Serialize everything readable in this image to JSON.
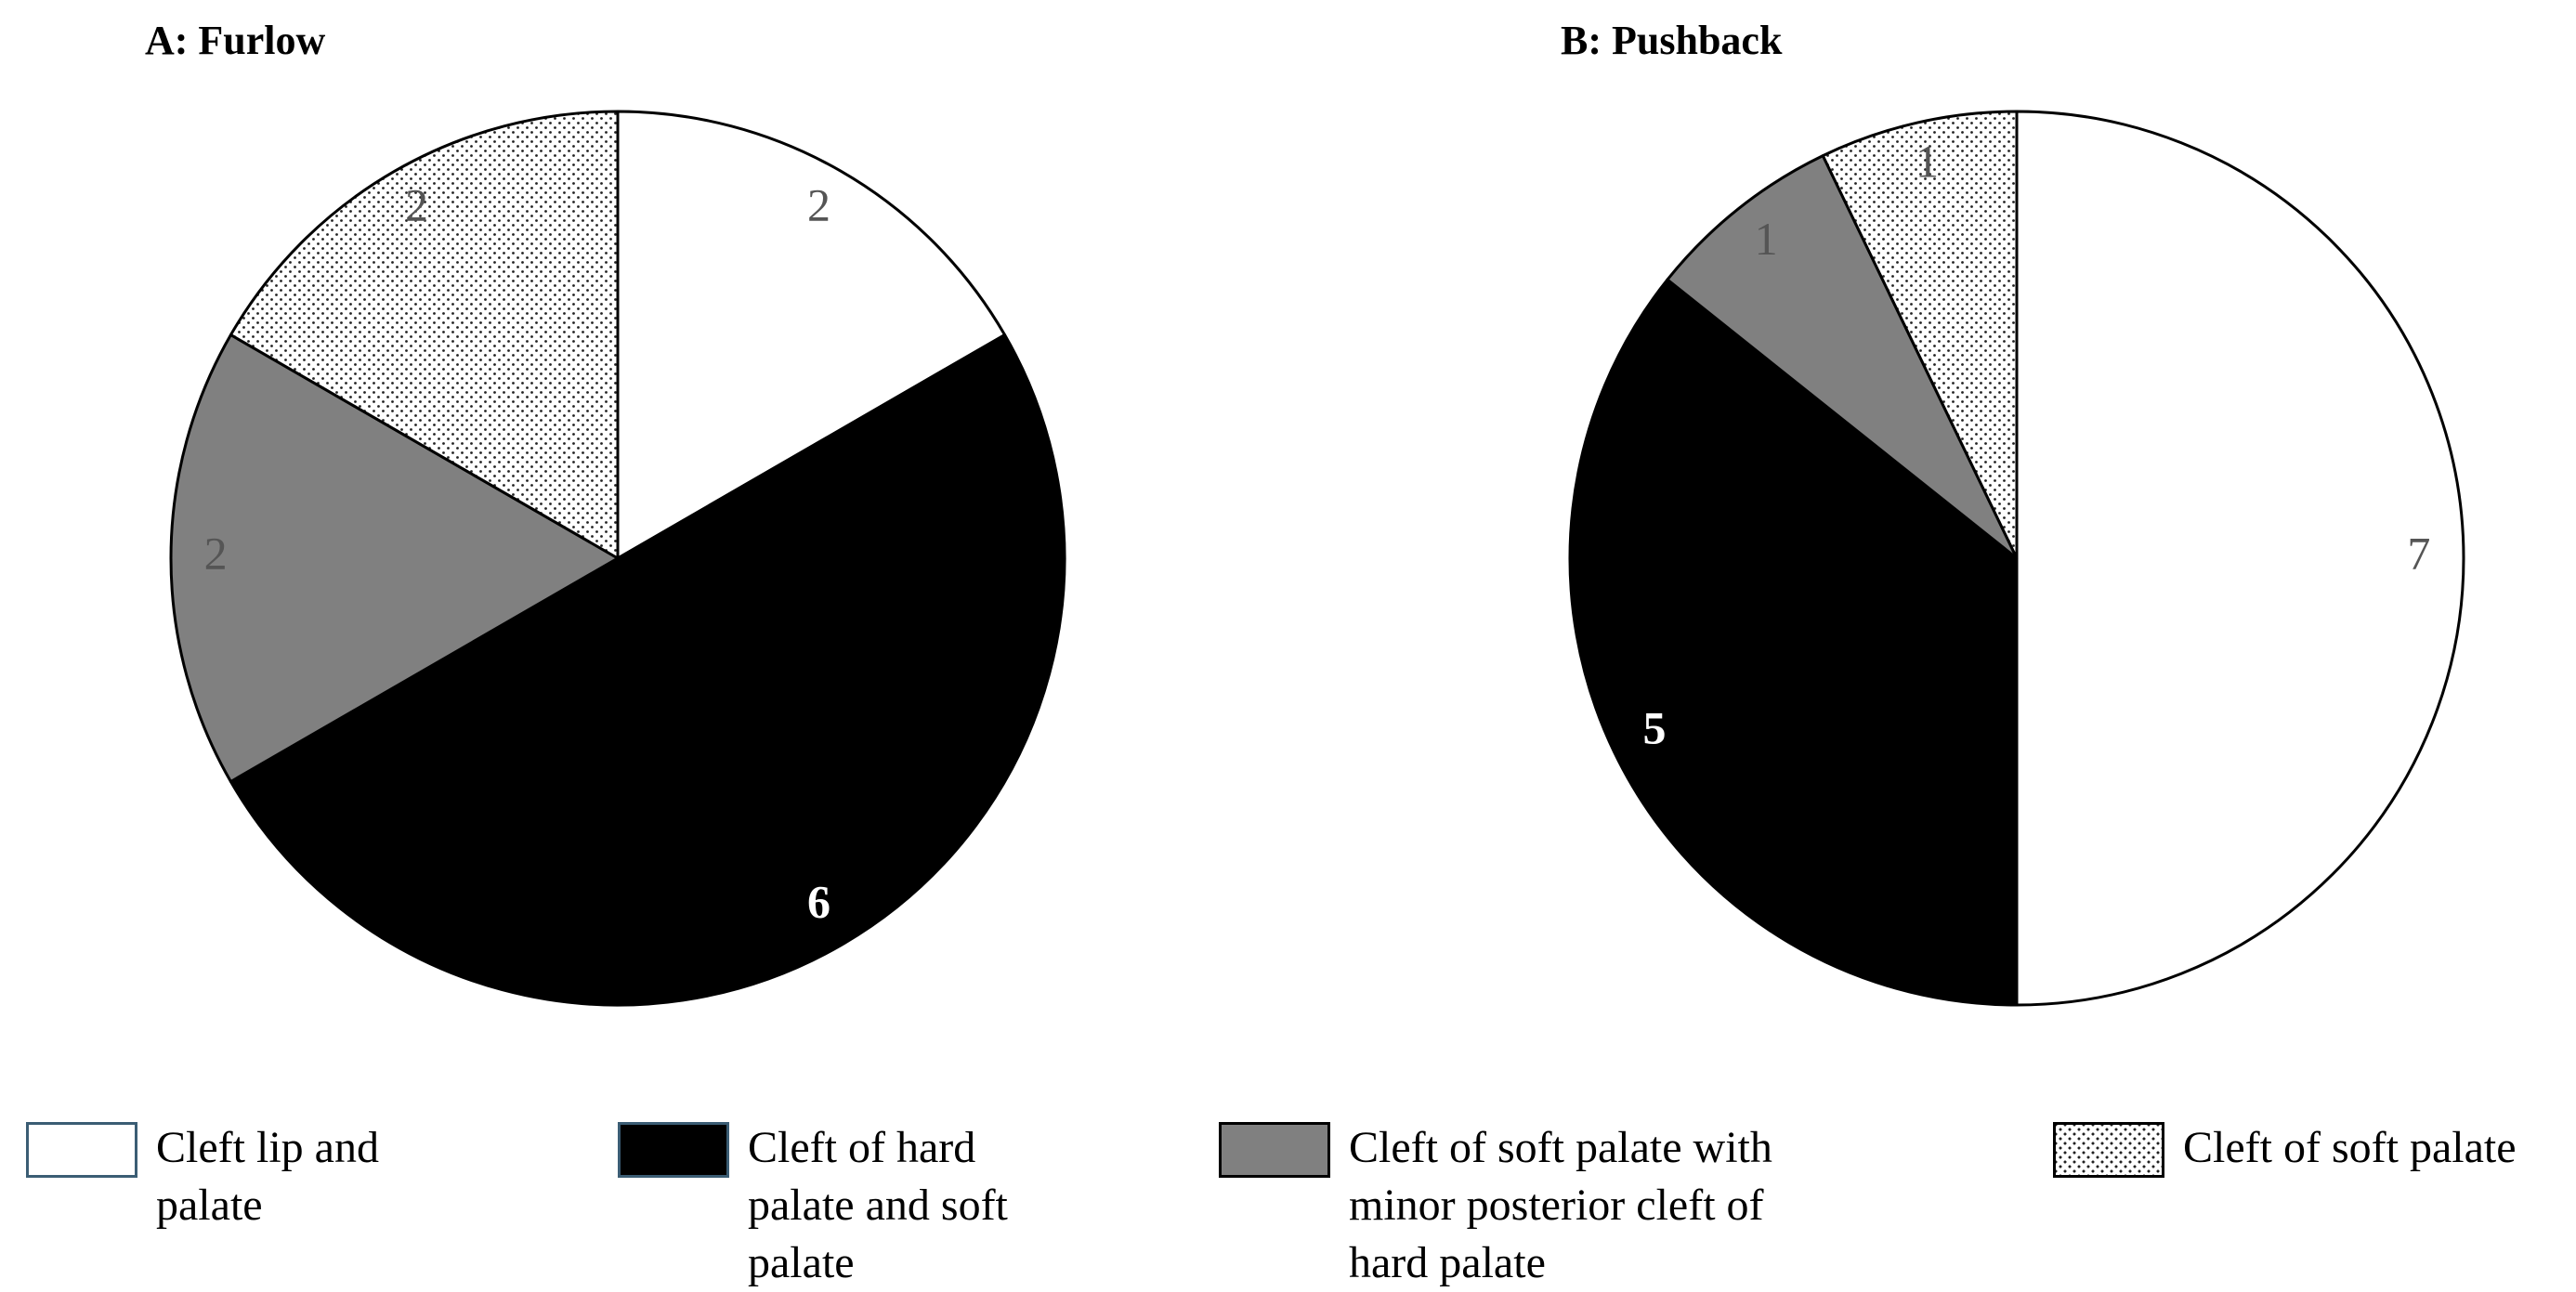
{
  "chart_data": [
    {
      "type": "pie",
      "title": "A: Furlow",
      "values": [
        2,
        6,
        2,
        2
      ]
    },
    {
      "type": "pie",
      "title": "B: Pushback",
      "values": [
        7,
        5,
        1,
        1
      ]
    }
  ],
  "legend": {
    "categories": [
      "Cleft lip and palate",
      "Cleft of hard palate and soft palate",
      "Cleft of soft palate with minor posterior cleft of hard palate",
      "Cleft of soft palate"
    ],
    "colors": [
      "#ffffff",
      "#000000",
      "#808080",
      "dotted"
    ]
  }
}
